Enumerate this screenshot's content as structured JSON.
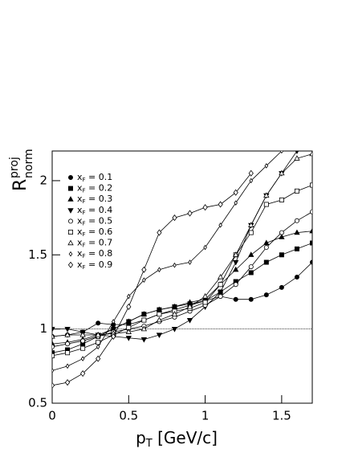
{
  "chart_data": {
    "type": "line",
    "xlabel": {
      "base": "p",
      "sub": "T",
      "rest": " [GeV/c]"
    },
    "ylabel": {
      "base": "R",
      "sup": "proj",
      "sub": "norm"
    },
    "x": [
      0,
      0.1,
      0.2,
      0.3,
      0.4,
      0.5,
      0.6,
      0.7,
      0.8,
      0.9,
      1.0,
      1.1,
      1.2,
      1.3,
      1.4,
      1.5,
      1.6,
      1.7
    ],
    "xlim": [
      0,
      1.7
    ],
    "xticks": [
      0,
      0.5,
      1,
      1.5
    ],
    "ylim": [
      0.5,
      2.2
    ],
    "yticks": [
      0.5,
      1,
      1.5,
      2
    ],
    "reference_line": 1,
    "legend": "upper left",
    "series": [
      {
        "name": "x_F = 0.1",
        "color": "#000000",
        "marker": "circle",
        "filled": true,
        "values": [
          0.95,
          0.96,
          0.98,
          1.04,
          1.03,
          1.03,
          1.06,
          1.1,
          1.13,
          1.16,
          1.19,
          1.22,
          1.2,
          1.2,
          1.23,
          1.28,
          1.35,
          1.45
        ]
      },
      {
        "name": "x_F = 0.2",
        "color": "#000000",
        "marker": "square",
        "filled": true,
        "values": [
          0.84,
          0.86,
          0.9,
          0.95,
          1.0,
          1.05,
          1.1,
          1.13,
          1.15,
          1.17,
          1.19,
          1.25,
          1.32,
          1.38,
          1.45,
          1.5,
          1.54,
          1.58
        ]
      },
      {
        "name": "x_F = 0.3",
        "color": "#000000",
        "marker": "triangle-up",
        "filled": true,
        "values": [
          0.9,
          0.91,
          0.93,
          0.96,
          1.0,
          1.05,
          1.1,
          1.13,
          1.15,
          1.18,
          1.2,
          1.3,
          1.4,
          1.5,
          1.58,
          1.62,
          1.65,
          1.66
        ]
      },
      {
        "name": "x_F = 0.4",
        "color": "#000000",
        "marker": "triangle-down",
        "filled": true,
        "values": [
          1.0,
          1.0,
          0.98,
          0.96,
          0.95,
          0.94,
          0.93,
          0.96,
          1.0,
          1.06,
          1.15,
          1.25,
          1.45,
          1.7,
          1.9,
          2.05,
          2.2,
          null
        ]
      },
      {
        "name": "x_F = 0.5",
        "color": "#000000",
        "marker": "circle",
        "filled": false,
        "values": [
          0.88,
          0.9,
          0.92,
          0.95,
          0.98,
          1.0,
          1.02,
          1.05,
          1.08,
          1.12,
          1.16,
          1.22,
          1.3,
          1.42,
          1.55,
          1.65,
          1.73,
          1.79
        ]
      },
      {
        "name": "x_F = 0.6",
        "color": "#000000",
        "marker": "square",
        "filled": false,
        "values": [
          0.82,
          0.84,
          0.87,
          0.91,
          0.96,
          1.01,
          1.06,
          1.1,
          1.12,
          1.14,
          1.18,
          1.3,
          1.5,
          1.65,
          1.84,
          1.87,
          1.93,
          1.97
        ]
      },
      {
        "name": "x_F = 0.7",
        "color": "#000000",
        "marker": "triangle-up",
        "filled": false,
        "values": [
          0.95,
          0.96,
          0.96,
          0.96,
          0.97,
          0.98,
          1.0,
          1.06,
          1.1,
          1.15,
          1.22,
          1.35,
          1.5,
          1.7,
          1.9,
          2.05,
          2.15,
          2.18
        ]
      },
      {
        "name": "x_F = 0.8",
        "color": "#000000",
        "marker": "diamond-small",
        "filled": false,
        "values": [
          0.72,
          0.75,
          0.8,
          0.88,
          1.05,
          1.22,
          1.33,
          1.4,
          1.43,
          1.45,
          1.55,
          1.7,
          1.85,
          2.0,
          2.1,
          2.2,
          null,
          null
        ]
      },
      {
        "name": "x_F = 0.9",
        "color": "#000000",
        "marker": "diamond",
        "filled": false,
        "values": [
          0.62,
          0.64,
          0.7,
          0.8,
          0.95,
          1.15,
          1.4,
          1.65,
          1.75,
          1.78,
          1.82,
          1.84,
          1.92,
          2.05,
          null,
          null,
          null,
          null
        ]
      }
    ]
  }
}
